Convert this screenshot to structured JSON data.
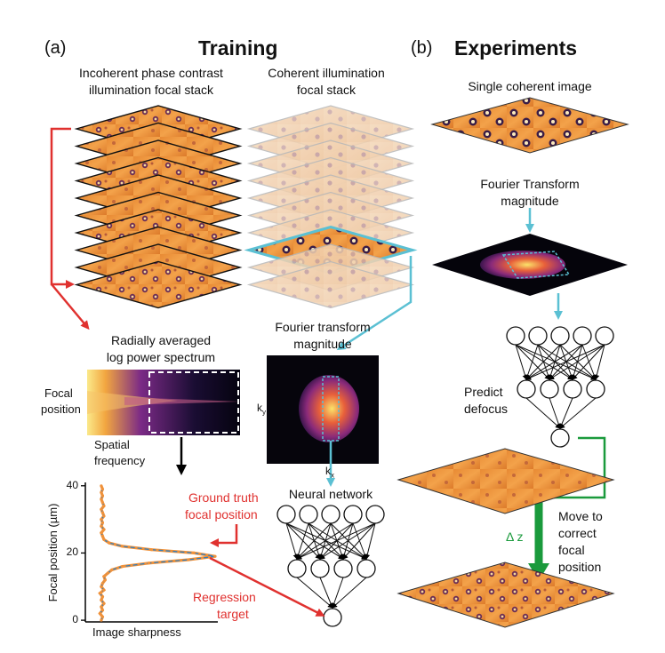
{
  "panel_a": {
    "label": "(a)",
    "title": "Training",
    "incoherent_stack_label_1": "Incoherent phase contrast",
    "incoherent_stack_label_2": "illumination focal stack",
    "coherent_stack_label_1": "Coherent illumination",
    "coherent_stack_label_2": "focal stack",
    "spectrum_label_1": "Radially averaged",
    "spectrum_label_2": "log power spectrum",
    "focal_position_label_1": "Focal",
    "focal_position_label_2": "position",
    "spatial_frequency_label_1": "Spatial",
    "spatial_frequency_label_2": "frequency",
    "ft_label_1": "Fourier transform",
    "ft_label_2": "magnitude",
    "ky_label": "k",
    "ky_sub": "y",
    "kx_label": "k",
    "kx_sub": "x",
    "neural_network_label": "Neural network",
    "ground_truth_label_1": "Ground truth",
    "ground_truth_label_2": "focal position",
    "regression_label_1": "Regression",
    "regression_label_2": "target"
  },
  "panel_b": {
    "label": "(b)",
    "title": "Experiments",
    "single_image_label": "Single coherent image",
    "ft_label_1": "Fourier Transform",
    "ft_label_2": "magnitude",
    "predict_label_1": "Predict",
    "predict_label_2": "defocus",
    "move_label_1": "Move to",
    "move_label_2": "correct",
    "move_label_3": "focal",
    "move_label_4": "position",
    "delta_z_label": "Δ z"
  },
  "chart_data": {
    "type": "line",
    "xlabel": "Image sharpness",
    "ylabel": "Focal position (µm)",
    "yticks": [
      0,
      20,
      40
    ],
    "ylim": [
      -0.5,
      41
    ],
    "xlim": [
      0,
      1
    ],
    "series": [
      {
        "x": [
          0.12,
          0.13,
          0.11,
          0.13,
          0.12,
          0.14,
          0.12,
          0.13,
          0.11,
          0.14,
          0.12,
          0.13,
          0.15,
          0.14,
          0.17,
          0.2,
          0.28,
          0.48,
          0.78,
          0.98,
          0.82,
          0.5,
          0.28,
          0.18,
          0.14,
          0.13,
          0.12,
          0.14,
          0.12,
          0.13,
          0.12,
          0.14,
          0.13,
          0.12,
          0.14,
          0.13,
          0.12,
          0.13,
          0.12,
          0.13,
          0.12
        ],
        "y": [
          0,
          1,
          2,
          3,
          4,
          5,
          6,
          7,
          8,
          9,
          10,
          11,
          12,
          13,
          14,
          15,
          16,
          17,
          18,
          19,
          20,
          21,
          22,
          23,
          24,
          25,
          26,
          27,
          28,
          29,
          30,
          31,
          32,
          33,
          34,
          35,
          36,
          37,
          38,
          39,
          40
        ]
      }
    ]
  },
  "colors": {
    "red_arrow": "#e0312f",
    "cyan_arrow": "#5bc0d3",
    "green_arrow": "#1a9a3c",
    "series_orange": "#f0923b",
    "series_blue": "#2f7fc0"
  }
}
